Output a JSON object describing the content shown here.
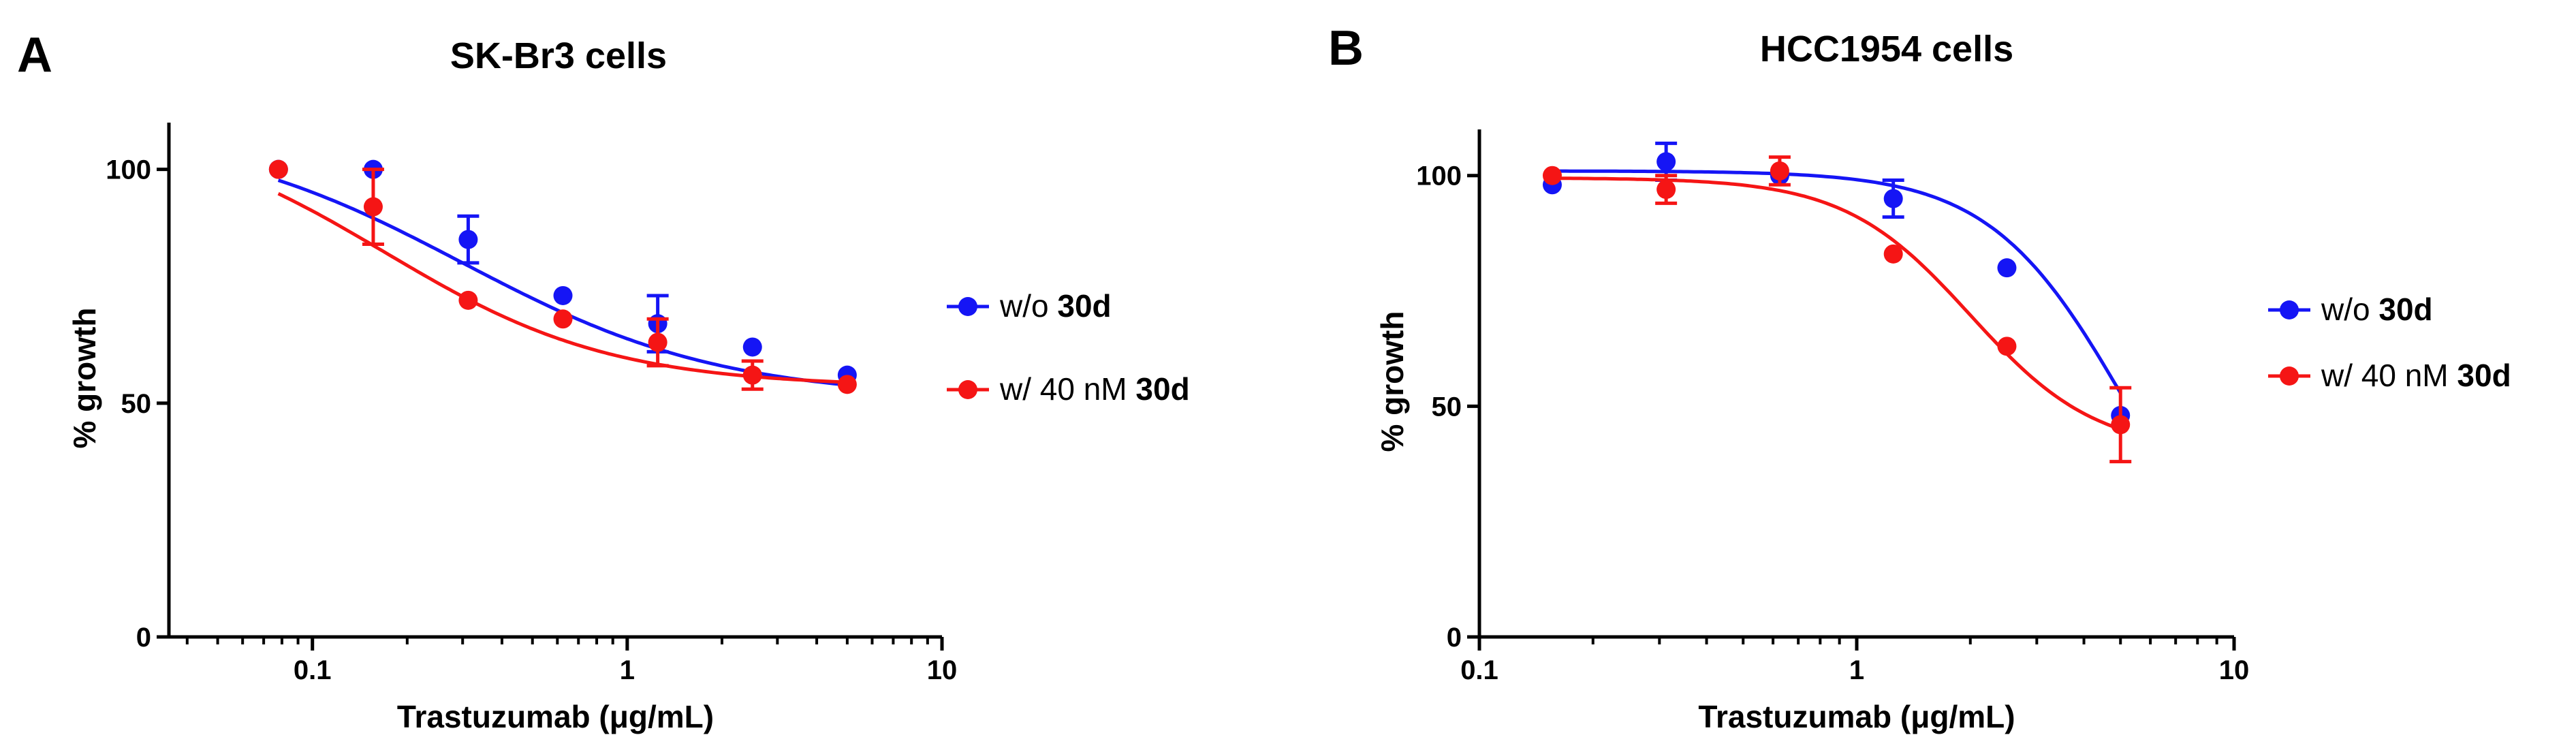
{
  "panels": [
    {
      "letter": "A",
      "chart_data": {
        "type": "scatter",
        "title": "SK-Br3 cells",
        "xlabel": "Trastuzumab (μg/mL)",
        "ylabel": "% growth",
        "xscale": "log",
        "xlim": [
          0.035,
          10
        ],
        "ylim": [
          0,
          110
        ],
        "xticks": [
          0.1,
          1,
          10
        ],
        "xtick_labels": [
          "0.1",
          "1",
          "10"
        ],
        "yticks": [
          0,
          50,
          100
        ],
        "ytick_labels": [
          "0",
          "50",
          "100"
        ],
        "legend_position": "right",
        "series": [
          {
            "name": "w/o 30d",
            "label_plain": "w/o ",
            "label_bold": "30d",
            "color": "#1515f5",
            "x": [
              0.078,
              0.156,
              0.3125,
              0.625,
              1.25,
              2.5,
              5
            ],
            "y": [
              100,
              100,
              85,
              73,
              67,
              62,
              56
            ],
            "err": [
              0,
              0,
              5,
              0,
              6,
              0,
              0
            ],
            "fit": {
              "top": 109,
              "bottom": 51,
              "ic50": 0.3,
              "hill": 1.05
            }
          },
          {
            "name": "w/ 40 nM 30d",
            "label_plain": "w/ 40 nM ",
            "label_bold": "30d",
            "color": "#f51515",
            "x": [
              0.078,
              0.156,
              0.3125,
              0.625,
              1.25,
              2.5,
              5
            ],
            "y": [
              100,
              92,
              72,
              68,
              63,
              56,
              54
            ],
            "err": [
              0,
              8,
              0,
              0,
              5,
              3,
              0
            ],
            "fit": {
              "top": 111,
              "bottom": 53.5,
              "ic50": 0.17,
              "hill": 1.2
            }
          }
        ]
      }
    },
    {
      "letter": "B",
      "chart_data": {
        "type": "scatter",
        "title": "HCC1954 cells",
        "xlabel": "Trastuzumab (μg/mL)",
        "ylabel": "% growth",
        "xscale": "log",
        "xlim": [
          0.1,
          10
        ],
        "ylim": [
          0,
          110
        ],
        "xticks": [
          0.1,
          1,
          10
        ],
        "xtick_labels": [
          "0.1",
          "1",
          "10"
        ],
        "yticks": [
          0,
          50,
          100
        ],
        "ytick_labels": [
          "0",
          "50",
          "100"
        ],
        "legend_position": "right",
        "series": [
          {
            "name": "w/o 30d",
            "label_plain": "w/o ",
            "label_bold": "30d",
            "color": "#1515f5",
            "x": [
              0.156,
              0.3125,
              0.625,
              1.25,
              2.5,
              5
            ],
            "y": [
              98,
              103,
              100,
              95,
              80,
              48
            ],
            "err": [
              0,
              4,
              0,
              4,
              0,
              0
            ],
            "fit": {
              "top": 101,
              "bottom": 0,
              "ic50": 5.2,
              "hill": 2.4
            }
          },
          {
            "name": "w/ 40 nM 30d",
            "label_plain": "w/ 40 nM ",
            "label_bold": "30d",
            "color": "#f51515",
            "x": [
              0.156,
              0.3125,
              0.625,
              1.25,
              2.5,
              5
            ],
            "y": [
              100,
              97,
              101,
              83,
              63,
              46
            ],
            "err": [
              0,
              3,
              3,
              0,
              0,
              8
            ],
            "fit": {
              "top": 99.5,
              "bottom": 40,
              "ic50": 2.0,
              "hill": 2.6
            }
          }
        ]
      }
    }
  ]
}
